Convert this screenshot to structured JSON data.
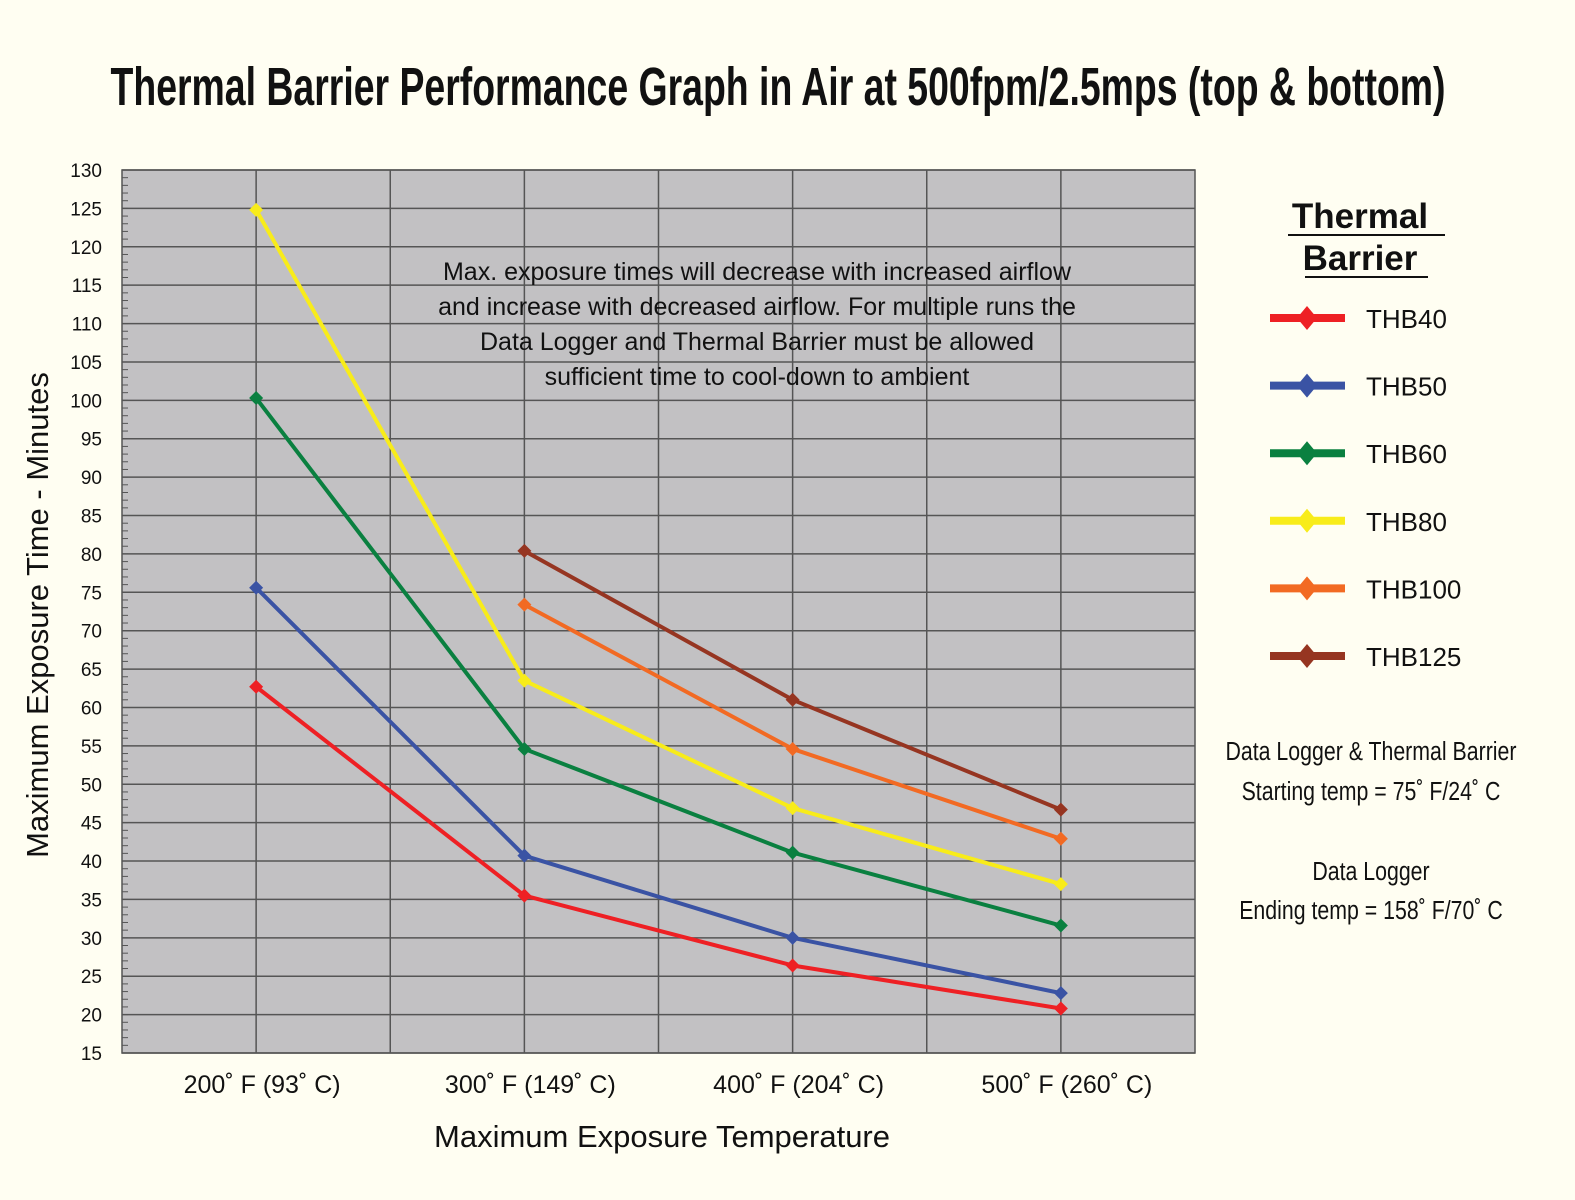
{
  "chart_data": {
    "type": "line",
    "title": "Thermal Barrier Performance Graph in Air at 500fpm/2.5mps (top & bottom)",
    "xlabel": "Maximum Exposure Temperature",
    "ylabel": "Maximum Exposure Time - Minutes",
    "categories": [
      "200˚ F (93˚ C)",
      "300˚ F (149˚ C)",
      "400˚ F (204˚ C)",
      "500˚ F (260˚ C)"
    ],
    "ylim": [
      15,
      130
    ],
    "yticks": [
      "15",
      "20",
      "25",
      "30",
      "35",
      "40",
      "45",
      "50",
      "55",
      "60",
      "65",
      "70",
      "75",
      "80",
      "85",
      "90",
      "95",
      "100",
      "105",
      "110",
      "115",
      "120",
      "125",
      "130"
    ],
    "grid": true,
    "legend_position": "right",
    "legend_title": [
      "Thermal",
      "Barrier"
    ],
    "series": [
      {
        "name": "THB40",
        "color": "#ee2024",
        "values": [
          62.7,
          35.5,
          26.4,
          20.8
        ]
      },
      {
        "name": "THB50",
        "color": "#3a53a4",
        "values": [
          75.6,
          40.7,
          30.0,
          22.8
        ]
      },
      {
        "name": "THB60",
        "color": "#0a8040",
        "values": [
          100.3,
          54.6,
          41.1,
          31.6
        ]
      },
      {
        "name": "THB80",
        "color": "#f8ec1a",
        "values": [
          124.8,
          63.5,
          46.9,
          37.0
        ]
      },
      {
        "name": "THB100",
        "color": "#f26a23",
        "values": [
          null,
          73.4,
          54.6,
          42.9
        ]
      },
      {
        "name": "THB125",
        "color": "#963521",
        "values": [
          null,
          80.4,
          61.0,
          46.7
        ]
      }
    ],
    "annotation": [
      "Max. exposure times will decrease with increased airflow",
      "and increase with decreased airflow. For multiple runs the",
      "Data Logger and Thermal Barrier must be allowed",
      "sufficient time to cool-down to ambient"
    ],
    "side_notes": [
      "Data Logger & Thermal Barrier",
      "Starting temp = 75˚ F/24˚ C",
      "Data Logger",
      "Ending temp = 158˚ F/70˚ C"
    ],
    "plot_background": "#c2c1c3"
  }
}
